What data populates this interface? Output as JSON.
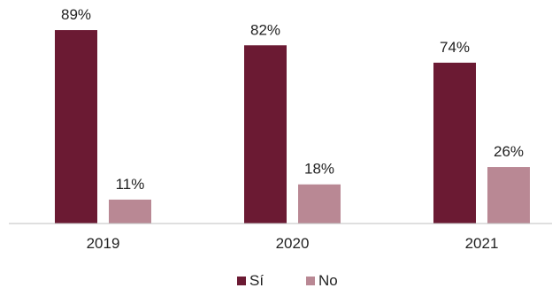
{
  "chart_data": {
    "type": "bar",
    "categories": [
      "2019",
      "2020",
      "2021"
    ],
    "series": [
      {
        "name": "Sí",
        "values": [
          89,
          82,
          74
        ],
        "labels": [
          "89%",
          "82%",
          "74%"
        ],
        "color": "#6b1a33"
      },
      {
        "name": "No",
        "values": [
          11,
          18,
          26
        ],
        "labels": [
          "11%",
          "18%",
          "26%"
        ],
        "color": "#b98894"
      }
    ],
    "ylim": [
      0,
      100
    ],
    "grid": false,
    "legend_position": "bottom-center",
    "axis_color": "#bfbfbf"
  }
}
